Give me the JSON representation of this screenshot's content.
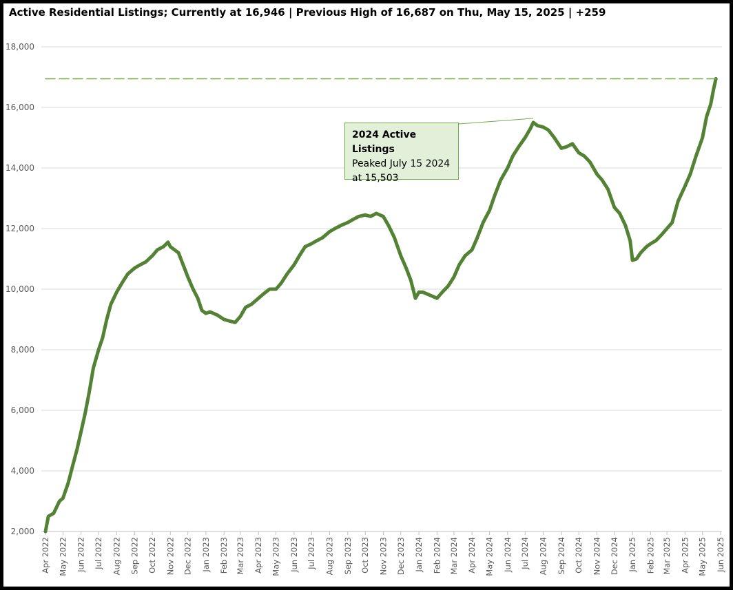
{
  "title": "Active Residential Listings; Currently at 16,946 | Previous High of 16,687 on Thu, May 15, 2025 | +259",
  "chart_data": {
    "type": "line",
    "title": "Active Residential Listings; Currently at 16,946 | Previous High of 16,687 on Thu, May 15, 2025 | +259",
    "xlabel": "",
    "ylabel": "",
    "xlim": [
      "2022-04-01",
      "2025-06-01"
    ],
    "ylim": [
      2000,
      18000
    ],
    "grid": "horizontal",
    "legend": "none",
    "y_ticks": [
      2000,
      4000,
      6000,
      8000,
      10000,
      12000,
      14000,
      16000,
      18000
    ],
    "y_tick_labels": [
      "2,000",
      "4,000",
      "6,000",
      "8,000",
      "10,000",
      "12,000",
      "14,000",
      "16,000",
      "18,000"
    ],
    "x_ticks": [
      "2022-04-01",
      "2022-05-01",
      "2022-06-01",
      "2022-07-01",
      "2022-08-01",
      "2022-09-01",
      "2022-10-01",
      "2022-11-01",
      "2022-12-01",
      "2023-01-01",
      "2023-02-01",
      "2023-03-01",
      "2023-04-01",
      "2023-05-01",
      "2023-06-01",
      "2023-07-01",
      "2023-08-01",
      "2023-09-01",
      "2023-10-01",
      "2023-11-01",
      "2023-12-01",
      "2024-01-01",
      "2024-02-01",
      "2024-03-01",
      "2024-04-01",
      "2024-05-01",
      "2024-06-01",
      "2024-07-01",
      "2024-08-01",
      "2024-09-01",
      "2024-10-01",
      "2024-11-01",
      "2024-12-01",
      "2025-01-01",
      "2025-02-01",
      "2025-03-01",
      "2025-04-01",
      "2025-05-01",
      "2025-06-01"
    ],
    "x_tick_labels": [
      "Apr 2022",
      "May 2022",
      "Jun 2022",
      "Jul 2022",
      "Aug 2022",
      "Sep 2022",
      "Oct 2022",
      "Nov 2022",
      "Dec 2022",
      "Jan 2023",
      "Feb 2023",
      "Mar 2023",
      "Apr 2023",
      "May 2023",
      "Jun 2023",
      "Jul 2023",
      "Aug 2023",
      "Sep 2023",
      "Oct 2023",
      "Nov 2023",
      "Dec 2023",
      "Jan 2024",
      "Feb 2024",
      "Mar 2024",
      "Apr 2024",
      "May 2024",
      "Jun 2024",
      "Jul 2024",
      "Aug 2024",
      "Sep 2024",
      "Oct 2024",
      "Nov 2024",
      "Dec 2024",
      "Jan 2025",
      "Feb 2025",
      "Mar 2025",
      "Apr 2025",
      "May 2025",
      "Jun 2025"
    ],
    "series": [
      {
        "color": "#548235",
        "x": [
          "2022-04-01",
          "2022-04-06",
          "2022-04-15",
          "2022-04-25",
          "2022-05-01",
          "2022-05-10",
          "2022-05-18",
          "2022-05-25",
          "2022-06-01",
          "2022-06-08",
          "2022-06-15",
          "2022-06-22",
          "2022-07-01",
          "2022-07-08",
          "2022-07-15",
          "2022-07-22",
          "2022-08-01",
          "2022-08-10",
          "2022-08-20",
          "2022-09-01",
          "2022-09-10",
          "2022-09-20",
          "2022-10-01",
          "2022-10-10",
          "2022-10-20",
          "2022-10-28",
          "2022-11-01",
          "2022-11-08",
          "2022-11-15",
          "2022-11-25",
          "2022-12-01",
          "2022-12-10",
          "2022-12-18",
          "2022-12-25",
          "2023-01-01",
          "2023-01-08",
          "2023-01-20",
          "2023-02-01",
          "2023-02-10",
          "2023-02-20",
          "2023-03-01",
          "2023-03-10",
          "2023-03-20",
          "2023-04-01",
          "2023-04-10",
          "2023-04-20",
          "2023-05-01",
          "2023-05-10",
          "2023-05-20",
          "2023-06-01",
          "2023-06-10",
          "2023-06-20",
          "2023-07-01",
          "2023-07-10",
          "2023-07-20",
          "2023-08-01",
          "2023-08-10",
          "2023-08-20",
          "2023-09-01",
          "2023-09-10",
          "2023-09-20",
          "2023-10-01",
          "2023-10-10",
          "2023-10-20",
          "2023-11-01",
          "2023-11-10",
          "2023-11-20",
          "2023-12-01",
          "2023-12-10",
          "2023-12-18",
          "2023-12-26",
          "2024-01-01",
          "2024-01-08",
          "2024-01-20",
          "2024-02-01",
          "2024-02-10",
          "2024-02-20",
          "2024-03-01",
          "2024-03-10",
          "2024-03-20",
          "2024-04-01",
          "2024-04-10",
          "2024-04-20",
          "2024-05-01",
          "2024-05-10",
          "2024-05-20",
          "2024-06-01",
          "2024-06-10",
          "2024-06-20",
          "2024-07-01",
          "2024-07-10",
          "2024-07-15",
          "2024-07-22",
          "2024-08-01",
          "2024-08-10",
          "2024-08-20",
          "2024-09-01",
          "2024-09-10",
          "2024-09-20",
          "2024-10-01",
          "2024-10-10",
          "2024-10-20",
          "2024-11-01",
          "2024-11-10",
          "2024-11-20",
          "2024-12-01",
          "2024-12-10",
          "2024-12-20",
          "2024-12-28",
          "2025-01-01",
          "2025-01-08",
          "2025-01-15",
          "2025-01-25",
          "2025-02-01",
          "2025-02-10",
          "2025-02-20",
          "2025-03-01",
          "2025-03-10",
          "2025-03-20",
          "2025-04-01",
          "2025-04-10",
          "2025-04-20",
          "2025-05-01",
          "2025-05-08",
          "2025-05-15",
          "2025-05-20",
          "2025-05-24"
        ],
        "values": [
          2000,
          2500,
          2600,
          3000,
          3100,
          3600,
          4200,
          4700,
          5300,
          5900,
          6600,
          7400,
          8000,
          8400,
          9000,
          9500,
          9900,
          10200,
          10500,
          10700,
          10800,
          10900,
          11100,
          11300,
          11400,
          11550,
          11400,
          11300,
          11200,
          10700,
          10400,
          10000,
          9700,
          9300,
          9200,
          9250,
          9150,
          9000,
          8950,
          8900,
          9100,
          9400,
          9500,
          9700,
          9850,
          10000,
          10000,
          10200,
          10500,
          10800,
          11100,
          11400,
          11500,
          11600,
          11700,
          11900,
          12000,
          12100,
          12200,
          12300,
          12400,
          12450,
          12400,
          12500,
          12400,
          12100,
          11700,
          11100,
          10700,
          10300,
          9700,
          9900,
          9900,
          9800,
          9700,
          9900,
          10100,
          10400,
          10800,
          11100,
          11300,
          11700,
          12200,
          12600,
          13100,
          13600,
          14000,
          14400,
          14700,
          15000,
          15300,
          15503,
          15400,
          15350,
          15250,
          15000,
          14650,
          14700,
          14800,
          14500,
          14400,
          14200,
          13800,
          13600,
          13300,
          12700,
          12500,
          12100,
          11600,
          10950,
          11000,
          11200,
          11400,
          11500,
          11600,
          11800,
          12000,
          12200,
          12900,
          13400,
          13800,
          14400,
          15000,
          15700,
          16100,
          16600,
          16946
        ]
      },
      {
        "name": "",
        "style": "dashed",
        "color": "#70ad47",
        "x": [
          "2022-04-01",
          "2025-05-24"
        ],
        "values": [
          16946,
          16946
        ]
      }
    ],
    "annotations": [
      {
        "title": "2024 Active Listings",
        "line1": "Peaked July 15 2024",
        "line2": "at 15,503",
        "x": "2024-07-15",
        "y": 15503
      }
    ]
  }
}
